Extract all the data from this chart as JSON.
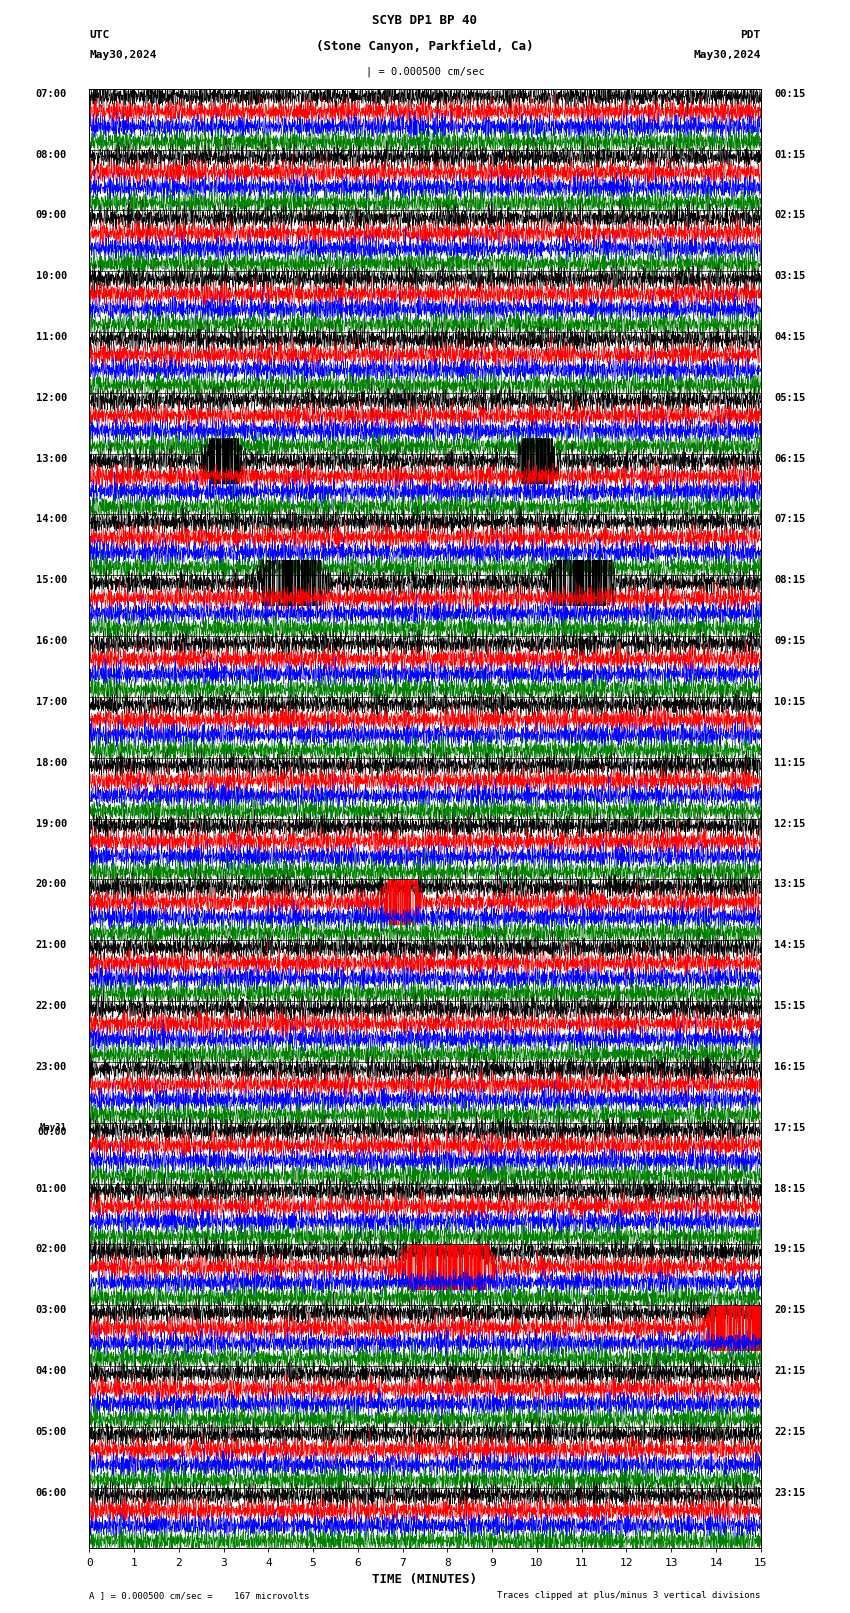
{
  "title_line1": "SCYB DP1 BP 40",
  "title_line2": "(Stone Canyon, Parkfield, Ca)",
  "scale_text": "| = 0.000500 cm/sec",
  "left_label": "UTC",
  "left_date": "May30,2024",
  "right_label": "PDT",
  "right_date": "May30,2024",
  "xlabel": "TIME (MINUTES)",
  "footer_left": "A ] = 0.000500 cm/sec =    167 microvolts",
  "footer_right": "Traces clipped at plus/minus 3 vertical divisions",
  "num_rows": 24,
  "traces_per_row": 4,
  "minutes_per_row": 15,
  "colors": [
    "black",
    "red",
    "blue",
    "green"
  ],
  "bg_color": "#ffffff",
  "figwidth": 8.5,
  "figheight": 16.13,
  "left_time_labels": [
    "07:00",
    "08:00",
    "09:00",
    "10:00",
    "11:00",
    "12:00",
    "13:00",
    "14:00",
    "15:00",
    "16:00",
    "17:00",
    "18:00",
    "19:00",
    "20:00",
    "21:00",
    "22:00",
    "23:00",
    "May31\n00:00",
    "01:00",
    "02:00",
    "03:00",
    "04:00",
    "05:00",
    "06:00"
  ],
  "right_time_labels": [
    "00:15",
    "01:15",
    "02:15",
    "03:15",
    "04:15",
    "05:15",
    "06:15",
    "07:15",
    "08:15",
    "09:15",
    "10:15",
    "11:15",
    "12:15",
    "13:15",
    "14:15",
    "15:15",
    "16:15",
    "17:15",
    "18:15",
    "19:15",
    "20:15",
    "21:15",
    "22:15",
    "23:15"
  ]
}
